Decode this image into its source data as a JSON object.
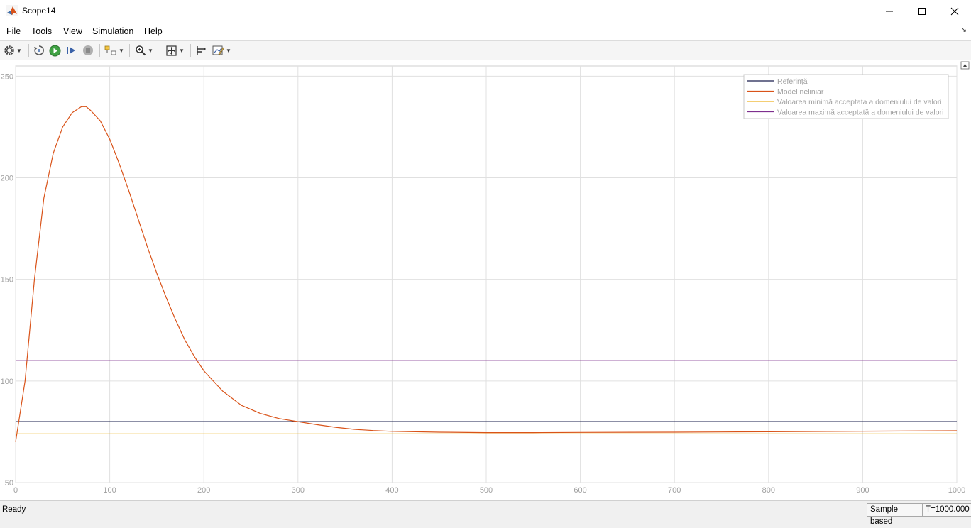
{
  "window": {
    "title": "Scope14"
  },
  "menu": {
    "items": [
      "File",
      "Tools",
      "View",
      "Simulation",
      "Help"
    ]
  },
  "toolbar": {
    "icons": [
      "gear-icon",
      "restore-icon",
      "run-icon",
      "step-forward-icon",
      "stop-icon",
      "highlight-block-icon",
      "zoom-in-icon",
      "fit-to-view-icon",
      "cursor-measurements-icon",
      "style-icon"
    ]
  },
  "colors": {
    "reference": "#1a1f4d",
    "model": "#d95319",
    "min": "#edb120",
    "max": "#7e2f8e",
    "grid": "#e0e0e0",
    "tick_label": "#a0a0a0"
  },
  "chart_data": {
    "type": "line",
    "title": "",
    "xlabel": "",
    "ylabel": "",
    "xlim": [
      0,
      1000
    ],
    "ylim": [
      50,
      255
    ],
    "xticks": [
      0,
      100,
      200,
      300,
      400,
      500,
      600,
      700,
      800,
      900,
      1000
    ],
    "yticks": [
      50,
      100,
      150,
      200,
      250
    ],
    "grid": true,
    "legend_position": "top-right",
    "series": [
      {
        "name": "Referință",
        "color": "#1a1f4d",
        "x": [
          0,
          1000
        ],
        "y": [
          80,
          80
        ]
      },
      {
        "name": "Model neliniar",
        "color": "#d95319",
        "x": [
          0,
          10,
          20,
          30,
          40,
          50,
          60,
          70,
          75,
          80,
          90,
          100,
          110,
          120,
          130,
          140,
          150,
          160,
          170,
          180,
          190,
          200,
          220,
          240,
          260,
          280,
          300,
          320,
          340,
          360,
          380,
          400,
          450,
          500,
          550,
          600,
          700,
          800,
          900,
          1000
        ],
        "y": [
          70,
          100,
          150,
          190,
          212,
          225,
          232,
          235,
          235,
          233,
          228,
          219,
          207,
          194,
          180,
          166,
          153,
          141,
          130,
          120,
          112,
          105,
          95,
          88,
          84,
          81.5,
          80,
          78.5,
          77.2,
          76.2,
          75.6,
          75.2,
          74.8,
          74.6,
          74.6,
          74.7,
          74.8,
          75,
          75.3,
          75.5
        ]
      },
      {
        "name": "Valoarea minimă acceptata a domeniului de valori",
        "color": "#edb120",
        "x": [
          0,
          1000
        ],
        "y": [
          74,
          74
        ]
      },
      {
        "name": "Valoarea maximă acceptată a domeniului de valori",
        "color": "#7e2f8e",
        "x": [
          0,
          1000
        ],
        "y": [
          110,
          110
        ]
      }
    ]
  },
  "status": {
    "left": "Ready",
    "mode": "Sample based",
    "time": "T=1000.000"
  }
}
